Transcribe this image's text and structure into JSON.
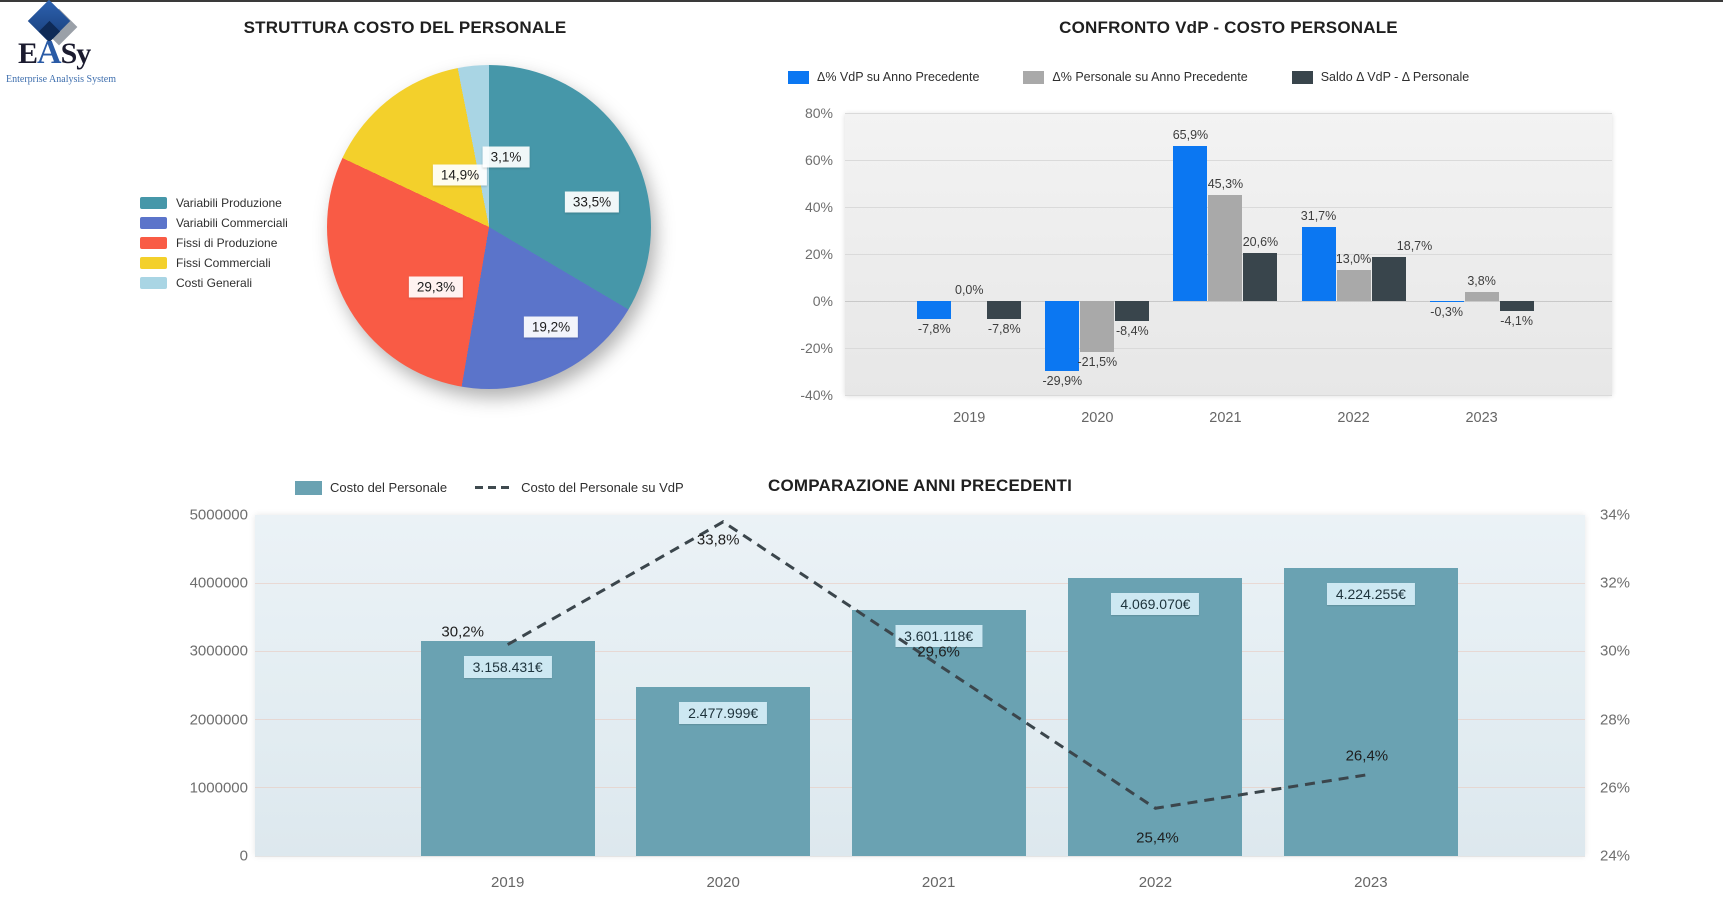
{
  "logo": {
    "letters": {
      "e": "E",
      "a": "A",
      "sy": "Sy"
    },
    "subtitle": "Enterprise Analysis System"
  },
  "chart_data": [
    {
      "id": "struttura-pie",
      "type": "pie",
      "title": "STRUTTURA COSTO DEL PERSONALE",
      "labels": [
        "Variabili Produzione",
        "Variabili Commerciali",
        "Fissi di Produzione",
        "Fissi Commerciali",
        "Costi Generali"
      ],
      "values": [
        33.5,
        19.2,
        29.3,
        14.9,
        3.1
      ],
      "value_labels": [
        "33,5%",
        "19,2%",
        "29,3%",
        "14,9%",
        "3,1%"
      ],
      "colors": [
        "#4697a9",
        "#5b74ca",
        "#f95b45",
        "#f3d02b",
        "#a9d5e4"
      ],
      "legend_position": "left"
    },
    {
      "id": "confronto-grouped-bar",
      "type": "bar",
      "title": "CONFRONTO VdP - COSTO PERSONALE",
      "categories": [
        "2019",
        "2020",
        "2021",
        "2022",
        "2023"
      ],
      "series": [
        {
          "name": "Δ% VdP su Anno Precedente",
          "color": "#0b77f2",
          "values": [
            -7.8,
            -29.9,
            65.9,
            31.7,
            -0.3
          ],
          "labels": [
            "-7,8%",
            "-29,9%",
            "65,9%",
            "31,7%",
            "-0,3%"
          ]
        },
        {
          "name": "Δ% Personale su Anno Precedente",
          "color": "#a9a9a9",
          "values": [
            0.0,
            -21.5,
            45.3,
            13.0,
            3.8
          ],
          "labels": [
            "0,0%",
            "-21,5%",
            "45,3%",
            "13,0%",
            "3,8%"
          ]
        },
        {
          "name": "Saldo Δ VdP - Δ Personale",
          "color": "#39454c",
          "values": [
            -7.8,
            -8.4,
            20.6,
            18.7,
            -4.1
          ],
          "labels": [
            "-7,8%",
            "-8,4%",
            "20,6%",
            "18,7%",
            "-4,1%"
          ]
        }
      ],
      "ylim": [
        -40,
        80
      ],
      "yticks": [
        "80%",
        "60%",
        "40%",
        "20%",
        "0%",
        "-20%",
        "-40%"
      ],
      "grid": true,
      "legend_position": "top"
    },
    {
      "id": "comparazione-combo",
      "type": "bar",
      "title": "COMPARAZIONE ANNI PRECEDENTI",
      "categories": [
        "2019",
        "2020",
        "2021",
        "2022",
        "2023"
      ],
      "bar_series": {
        "name": "Costo del Personale",
        "color": "#6aa2b2",
        "values": [
          3158431,
          2477999,
          3601118,
          4069070,
          4224255
        ],
        "labels": [
          "3.158.431€",
          "2.477.999€",
          "3.601.118€",
          "4.069.070€",
          "4.224.255€"
        ]
      },
      "line_series": {
        "name": "Costo del Personale su VdP",
        "style": "dashed",
        "color": "#3b464c",
        "values": [
          30.2,
          33.8,
          29.6,
          25.4,
          26.4
        ],
        "labels": [
          "30,2%",
          "33,8%",
          "29,6%",
          "25,4%",
          "26,4%"
        ]
      },
      "left_ylim": [
        0,
        5000000
      ],
      "left_yticks": [
        "5000000",
        "4000000",
        "3000000",
        "2000000",
        "1000000",
        "0"
      ],
      "right_ylim": [
        24,
        34
      ],
      "right_yticks": [
        "34%",
        "32%",
        "30%",
        "28%",
        "26%",
        "24%"
      ],
      "grid": true,
      "legend_position": "top-left"
    }
  ]
}
